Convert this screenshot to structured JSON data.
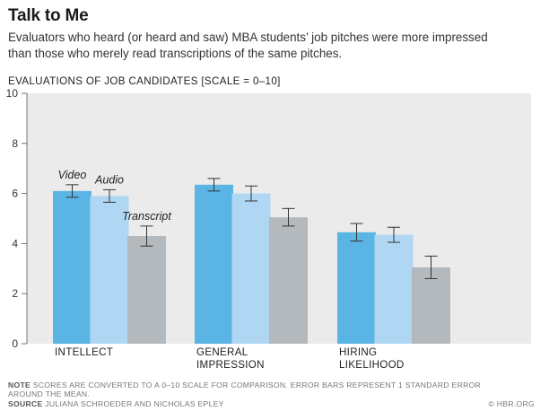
{
  "title": "Talk to Me",
  "subtitle": "Evaluators who heard (or heard and saw) MBA students’ job pitches were more impressed than those who merely read transcriptions of the same pitches.",
  "chart_heading": "EVALUATIONS OF JOB CANDIDATES [SCALE = 0–10]",
  "chart_data": {
    "type": "bar",
    "title": "EVALUATIONS OF JOB CANDIDATES [SCALE = 0–10]",
    "categories": [
      [
        "INTELLECT"
      ],
      [
        "GENERAL",
        "IMPRESSION"
      ],
      [
        "HIRING",
        "LIKELIHOOD"
      ]
    ],
    "series": [
      {
        "name": "Video",
        "color": "#5ab4e4",
        "values": [
          6.1,
          6.35,
          4.45
        ],
        "error": [
          0.25,
          0.25,
          0.35
        ]
      },
      {
        "name": "Audio",
        "color": "#afd7f3",
        "values": [
          5.9,
          6.0,
          4.35
        ],
        "error": [
          0.25,
          0.3,
          0.3
        ]
      },
      {
        "name": "Transcript",
        "color": "#b4b9bd",
        "values": [
          4.3,
          5.05,
          3.05
        ],
        "error": [
          0.4,
          0.35,
          0.45
        ]
      }
    ],
    "ylim": [
      0,
      10
    ],
    "yticks": [
      0,
      2,
      4,
      6,
      8,
      10
    ],
    "grid": false,
    "legend": "inline labels above first group"
  },
  "note_label": "NOTE",
  "note_text": "SCORES ARE CONVERTED TO A 0–10 SCALE FOR COMPARISON. ERROR BARS REPRESENT 1 STANDARD ERROR AROUND THE MEAN.",
  "source_label": "SOURCE",
  "source_text": "JULIANA SCHROEDER AND NICHOLAS EPLEY",
  "credit": "© HBR.ORG"
}
